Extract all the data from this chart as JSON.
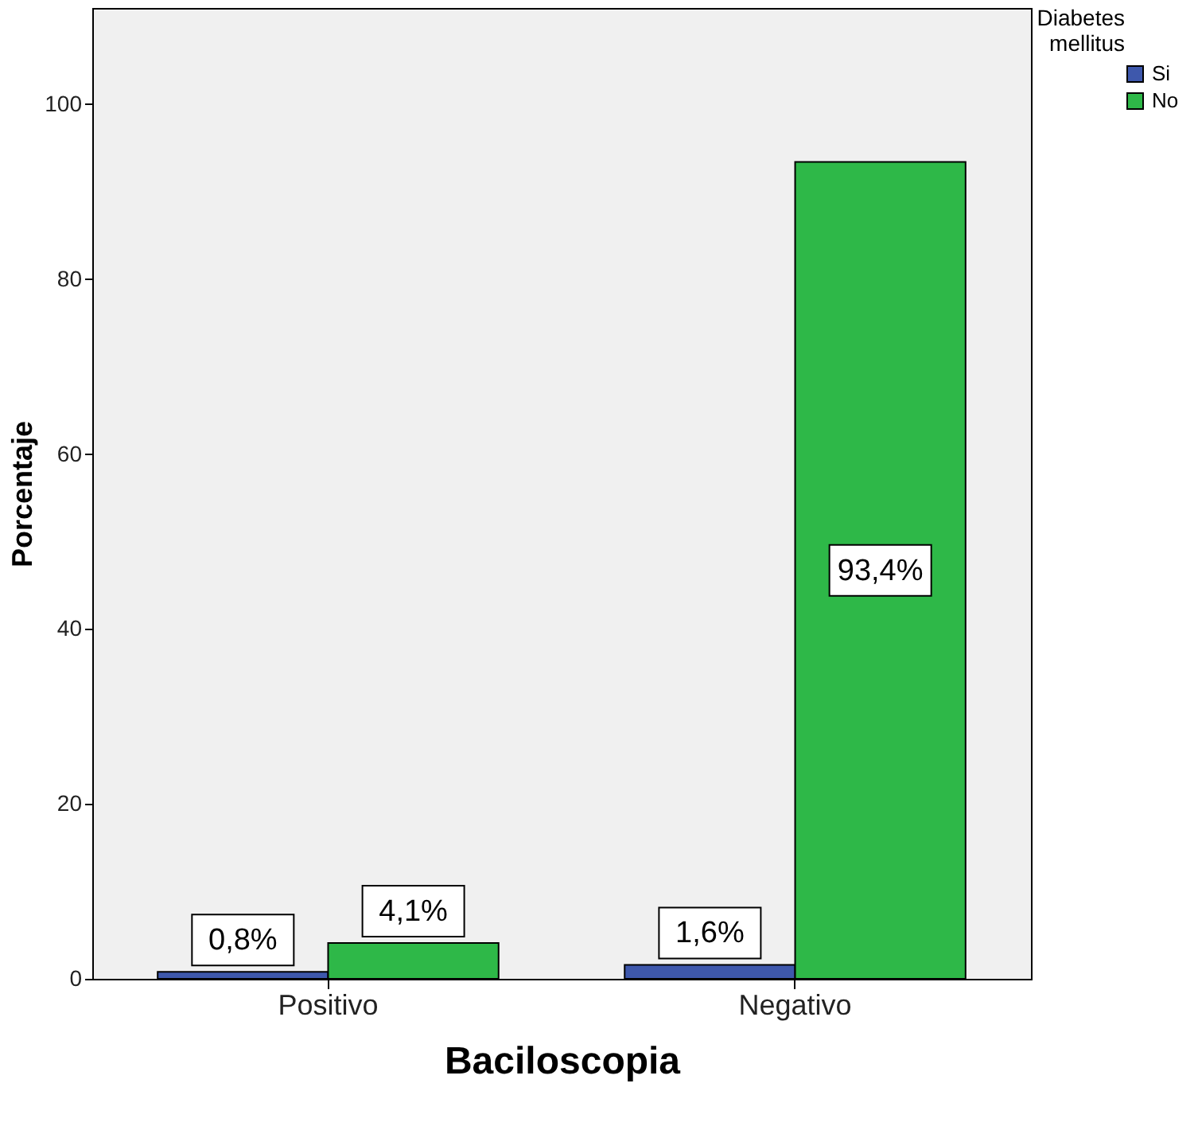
{
  "chart_data": {
    "type": "bar",
    "xlabel": "Baciloscopia",
    "ylabel": "Porcentaje",
    "legend_title": "Diabetes mellitus",
    "categories": [
      "Positivo",
      "Negativo"
    ],
    "series": [
      {
        "name": "Si",
        "color": "#3e58ac",
        "values": [
          0.8,
          1.6
        ],
        "value_labels": [
          "0,8%",
          "1,6%"
        ]
      },
      {
        "name": "No",
        "color": "#2eb848",
        "values": [
          4.1,
          93.4
        ],
        "value_labels": [
          "4,1%",
          "93,4%"
        ]
      }
    ],
    "ylim": [
      0,
      111
    ],
    "yticks": [
      0,
      20,
      40,
      60,
      80,
      100
    ],
    "grid": false,
    "legend": "top right"
  }
}
